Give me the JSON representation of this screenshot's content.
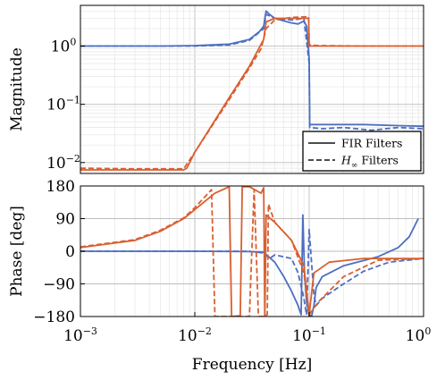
{
  "chart_data": [
    {
      "type": "line",
      "panel": "magnitude",
      "ylabel": "Magnitude",
      "xscale": "log",
      "yscale": "log",
      "xlim": [
        0.001,
        1
      ],
      "ylim": [
        0.0065,
        5
      ],
      "yticks": [
        {
          "value": 0.01,
          "label": "10",
          "exp": "−2"
        },
        {
          "value": 0.1,
          "label": "10",
          "exp": "−1"
        },
        {
          "value": 1,
          "label": "10",
          "exp": "0"
        }
      ],
      "grid": true,
      "legend": {
        "placement": "bottom-right",
        "entries": [
          {
            "label": "FIR Filters",
            "style": "solid"
          },
          {
            "label": "H∞ Filters",
            "style": "dashed"
          }
        ]
      },
      "colors": {
        "blue": "#4c6fc1",
        "orange": "#d95f30"
      },
      "series": [
        {
          "color": "blue",
          "style": "solid",
          "points": [
            [
              0.001,
              1.0
            ],
            [
              0.005,
              1.0
            ],
            [
              0.01,
              1.02
            ],
            [
              0.02,
              1.08
            ],
            [
              0.03,
              1.3
            ],
            [
              0.037,
              1.8
            ],
            [
              0.04,
              2.2
            ],
            [
              0.042,
              4.0
            ],
            [
              0.045,
              3.5
            ],
            [
              0.05,
              3.0
            ],
            [
              0.06,
              2.7
            ],
            [
              0.07,
              2.5
            ],
            [
              0.08,
              2.4
            ],
            [
              0.09,
              2.7
            ],
            [
              0.095,
              2.2
            ],
            [
              0.1,
              0.6
            ],
            [
              0.101,
              0.045
            ],
            [
              0.15,
              0.045
            ],
            [
              0.3,
              0.045
            ],
            [
              0.6,
              0.043
            ],
            [
              1,
              0.042
            ]
          ]
        },
        {
          "color": "blue",
          "style": "dashed",
          "points": [
            [
              0.001,
              1.0
            ],
            [
              0.005,
              1.0
            ],
            [
              0.01,
              1.0
            ],
            [
              0.02,
              1.05
            ],
            [
              0.03,
              1.25
            ],
            [
              0.04,
              2.0
            ],
            [
              0.042,
              3.5
            ],
            [
              0.05,
              3.0
            ],
            [
              0.07,
              2.8
            ],
            [
              0.09,
              3.0
            ],
            [
              0.1,
              0.5
            ],
            [
              0.101,
              0.04
            ],
            [
              0.13,
              0.038
            ],
            [
              0.2,
              0.04
            ],
            [
              0.35,
              0.036
            ],
            [
              0.6,
              0.04
            ],
            [
              1,
              0.038
            ]
          ]
        },
        {
          "color": "orange",
          "style": "solid",
          "points": [
            [
              0.001,
              0.0075
            ],
            [
              0.003,
              0.0075
            ],
            [
              0.008,
              0.0075
            ],
            [
              0.0085,
              0.008
            ],
            [
              0.01,
              0.015
            ],
            [
              0.02,
              0.13
            ],
            [
              0.03,
              0.45
            ],
            [
              0.04,
              1.3
            ],
            [
              0.042,
              2.6
            ],
            [
              0.05,
              3.0
            ],
            [
              0.06,
              3.0
            ],
            [
              0.08,
              3.0
            ],
            [
              0.099,
              3.0
            ],
            [
              0.1,
              1.0
            ],
            [
              0.101,
              1.0
            ],
            [
              0.15,
              1.0
            ],
            [
              0.3,
              1.0
            ],
            [
              0.5,
              1.0
            ],
            [
              1,
              1.0
            ]
          ]
        },
        {
          "color": "orange",
          "style": "dashed",
          "points": [
            [
              0.001,
              0.008
            ],
            [
              0.003,
              0.0078
            ],
            [
              0.008,
              0.0078
            ],
            [
              0.01,
              0.015
            ],
            [
              0.02,
              0.12
            ],
            [
              0.03,
              0.42
            ],
            [
              0.038,
              0.9
            ],
            [
              0.042,
              2.0
            ],
            [
              0.05,
              2.8
            ],
            [
              0.07,
              3.1
            ],
            [
              0.099,
              3.2
            ],
            [
              0.1,
              1.05
            ],
            [
              0.12,
              1.02
            ],
            [
              0.3,
              1.0
            ],
            [
              0.6,
              1.0
            ],
            [
              1,
              1.0
            ]
          ]
        }
      ]
    },
    {
      "type": "line",
      "panel": "phase",
      "xlabel": "Frequency [Hz]",
      "ylabel": "Phase [deg]",
      "xscale": "log",
      "xlim": [
        0.001,
        1
      ],
      "ylim": [
        -180,
        180
      ],
      "xticks": [
        {
          "value": 0.001,
          "label": "10",
          "exp": "−3"
        },
        {
          "value": 0.01,
          "label": "10",
          "exp": "−2"
        },
        {
          "value": 0.1,
          "label": "10",
          "exp": "−1"
        },
        {
          "value": 1,
          "label": "10",
          "exp": "0"
        }
      ],
      "yticks": [
        {
          "value": 180,
          "label": "180"
        },
        {
          "value": 90,
          "label": "90"
        },
        {
          "value": 0,
          "label": "0"
        },
        {
          "value": -90,
          "label": "−90"
        },
        {
          "value": -180,
          "label": "−180"
        }
      ],
      "grid": true,
      "series": [
        {
          "color": "blue",
          "style": "solid",
          "points": [
            [
              0.001,
              0
            ],
            [
              0.01,
              0
            ],
            [
              0.03,
              -1
            ],
            [
              0.04,
              -3
            ],
            [
              0.05,
              -30
            ],
            [
              0.06,
              -70
            ],
            [
              0.07,
              -110
            ],
            [
              0.08,
              -150
            ],
            [
              0.085,
              -175
            ],
            [
              0.088,
              100
            ],
            [
              0.091,
              -60
            ],
            [
              0.095,
              -140
            ],
            [
              0.1,
              -175
            ],
            [
              0.105,
              -180
            ],
            [
              0.11,
              -150
            ],
            [
              0.115,
              -100
            ],
            [
              0.13,
              -70
            ],
            [
              0.2,
              -40
            ],
            [
              0.4,
              -15
            ],
            [
              0.6,
              10
            ],
            [
              0.75,
              40
            ],
            [
              0.9,
              90
            ]
          ]
        },
        {
          "color": "blue",
          "style": "dashed",
          "points": [
            [
              0.001,
              0
            ],
            [
              0.03,
              0
            ],
            [
              0.04,
              -5
            ],
            [
              0.045,
              -20
            ],
            [
              0.05,
              -10
            ],
            [
              0.07,
              -20
            ],
            [
              0.08,
              -60
            ],
            [
              0.09,
              -130
            ],
            [
              0.095,
              -175
            ],
            [
              0.1,
              60
            ],
            [
              0.106,
              -50
            ],
            [
              0.11,
              -120
            ],
            [
              0.115,
              -150
            ],
            [
              0.13,
              -130
            ],
            [
              0.2,
              -90
            ],
            [
              0.3,
              -55
            ],
            [
              0.5,
              -30
            ],
            [
              1,
              -20
            ]
          ]
        },
        {
          "color": "orange",
          "style": "solid",
          "points": [
            [
              0.001,
              10
            ],
            [
              0.003,
              30
            ],
            [
              0.005,
              55
            ],
            [
              0.008,
              90
            ],
            [
              0.01,
              115
            ],
            [
              0.015,
              160
            ],
            [
              0.02,
              178
            ],
            [
              0.021,
              -180
            ],
            [
              0.025,
              -178
            ],
            [
              0.026,
              178
            ],
            [
              0.03,
              178
            ],
            [
              0.038,
              160
            ],
            [
              0.04,
              175
            ],
            [
              0.041,
              -180
            ],
            [
              0.042,
              100
            ],
            [
              0.05,
              80
            ],
            [
              0.07,
              30
            ],
            [
              0.09,
              -40
            ],
            [
              0.1,
              -180
            ],
            [
              0.102,
              -150
            ],
            [
              0.11,
              -60
            ],
            [
              0.15,
              -30
            ],
            [
              0.3,
              -20
            ],
            [
              1,
              -20
            ]
          ]
        },
        {
          "color": "orange",
          "style": "dashed",
          "points": [
            [
              0.001,
              12
            ],
            [
              0.003,
              32
            ],
            [
              0.005,
              58
            ],
            [
              0.008,
              92
            ],
            [
              0.01,
              120
            ],
            [
              0.014,
              170
            ],
            [
              0.015,
              -180
            ],
            [
              0.02,
              -180
            ],
            [
              0.03,
              -180
            ],
            [
              0.033,
              170
            ],
            [
              0.036,
              -180
            ],
            [
              0.04,
              -180
            ],
            [
              0.043,
              -175
            ],
            [
              0.044,
              130
            ],
            [
              0.05,
              80
            ],
            [
              0.07,
              30
            ],
            [
              0.09,
              -60
            ],
            [
              0.1,
              -175
            ],
            [
              0.12,
              -140
            ],
            [
              0.2,
              -70
            ],
            [
              0.4,
              -25
            ],
            [
              1,
              -20
            ]
          ]
        }
      ]
    }
  ]
}
